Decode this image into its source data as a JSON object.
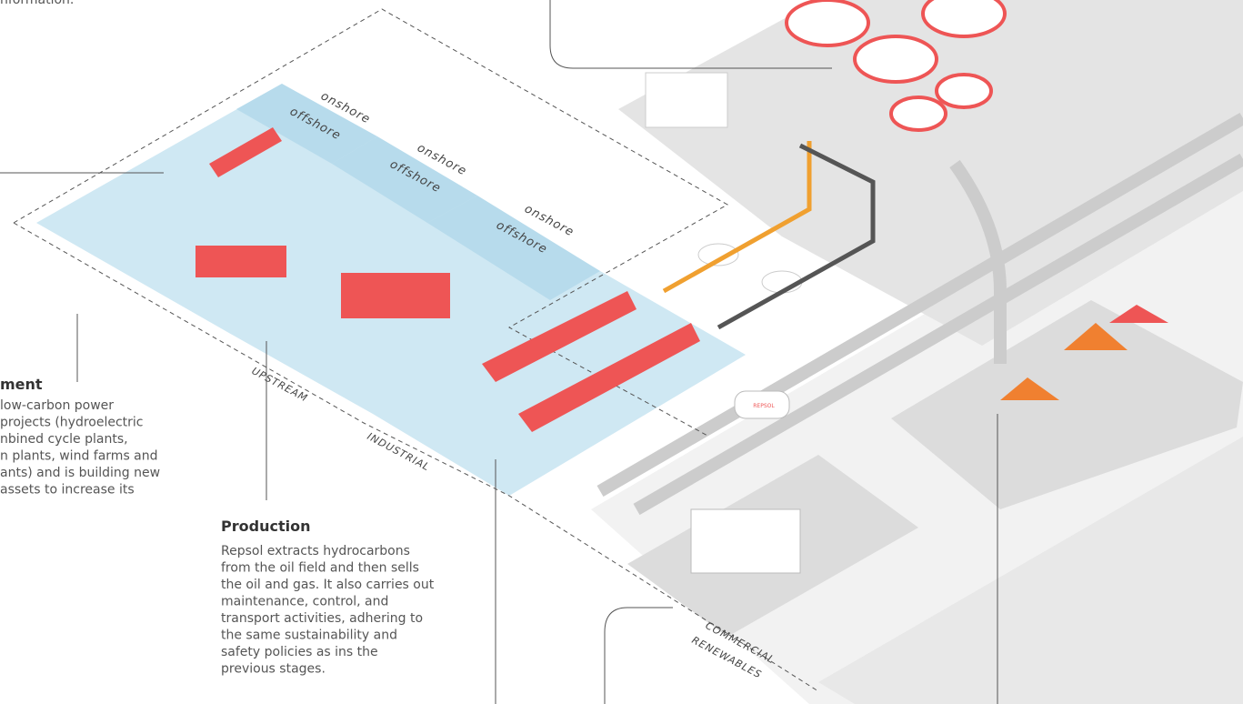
{
  "intro_fragment": "nformation.",
  "zones": {
    "onshore": [
      "onshore",
      "onshore",
      "onshore"
    ],
    "offshore": [
      "offshore",
      "offshore",
      "offshore"
    ],
    "upstream": "UPSTREAM",
    "industrial": "INDUSTRIAL",
    "commercial": "COMMERCIAL",
    "renewables": "RENEWABLES"
  },
  "truck_brand": "REPSOL",
  "development": {
    "title": "ment",
    "lines": [
      "low-carbon power",
      "projects (hydroelectric",
      "nbined cycle plants,",
      "n plants, wind farms and",
      "ants) and is building new",
      "assets to increase its"
    ]
  },
  "production": {
    "title": "Production",
    "lines": [
      "Repsol extracts hydrocarbons",
      "from the oil field and then sells",
      "the oil and gas. It also carries out",
      "maintenance, control, and",
      "transport activities, adhering to",
      "the same sustainability and",
      "safety policies as ins the",
      "previous stages."
    ]
  }
}
